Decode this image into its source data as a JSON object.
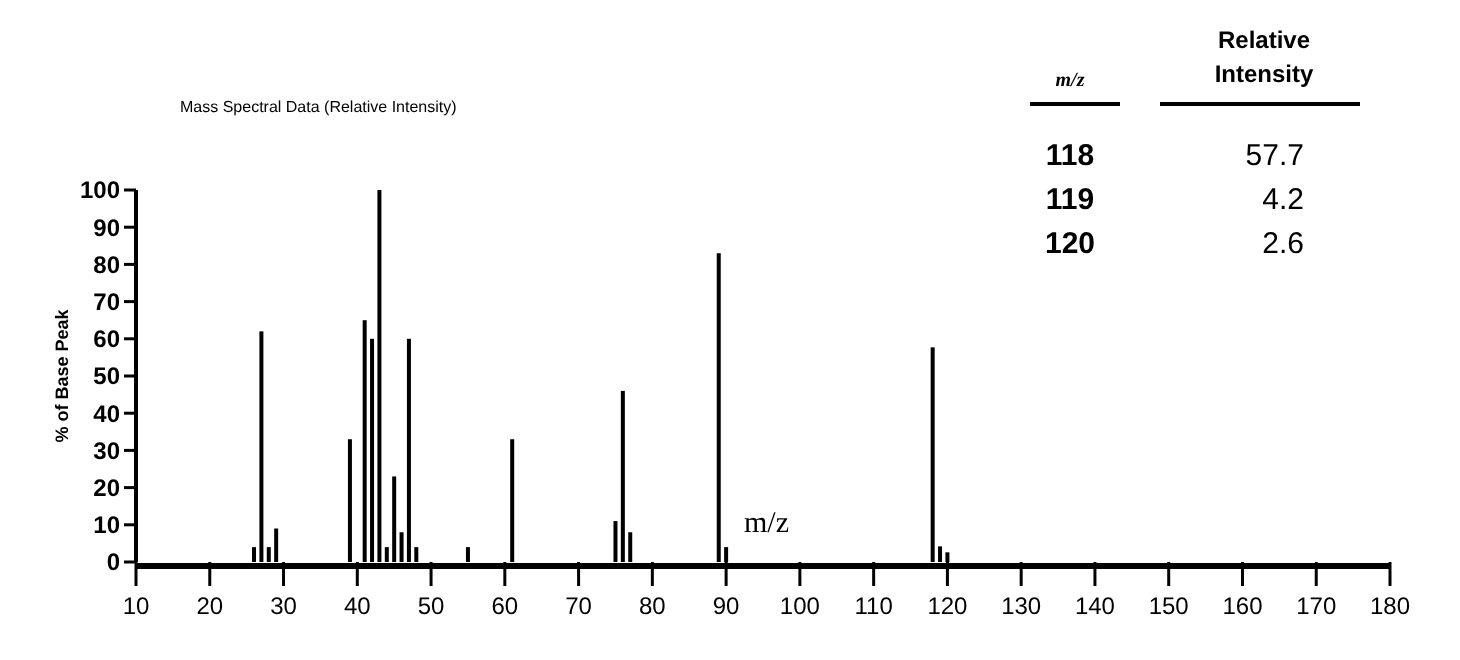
{
  "chart_data": {
    "type": "bar",
    "title": "Mass Spectral Data (Relative Intensity)",
    "xlabel": "m/z",
    "ylabel": "% of Base Peak",
    "color": "#000000",
    "x": [
      26,
      27,
      28,
      29,
      39,
      41,
      42,
      43,
      44,
      45,
      46,
      47,
      48,
      55,
      61,
      75,
      76,
      77,
      89,
      90,
      118,
      119,
      120
    ],
    "values": [
      4,
      62,
      4,
      9,
      33,
      65,
      60,
      100,
      4,
      23,
      8,
      60,
      4,
      4,
      33,
      11,
      46,
      8,
      83,
      4,
      57.7,
      4.2,
      2.6
    ],
    "annotations": [
      "m/z",
      "Relative Intensity",
      "118",
      "57.7",
      "119",
      "4.2",
      "120",
      "2.6"
    ],
    "xlim": [
      10,
      180
    ],
    "xticks": [
      10,
      20,
      30,
      40,
      50,
      60,
      70,
      80,
      90,
      100,
      110,
      120,
      130,
      140,
      150,
      160,
      170,
      180
    ],
    "ylim": [
      0,
      100
    ],
    "yticks": [
      0,
      10,
      20,
      30,
      40,
      50,
      60,
      70,
      80,
      90,
      100
    ],
    "grid": false
  }
}
